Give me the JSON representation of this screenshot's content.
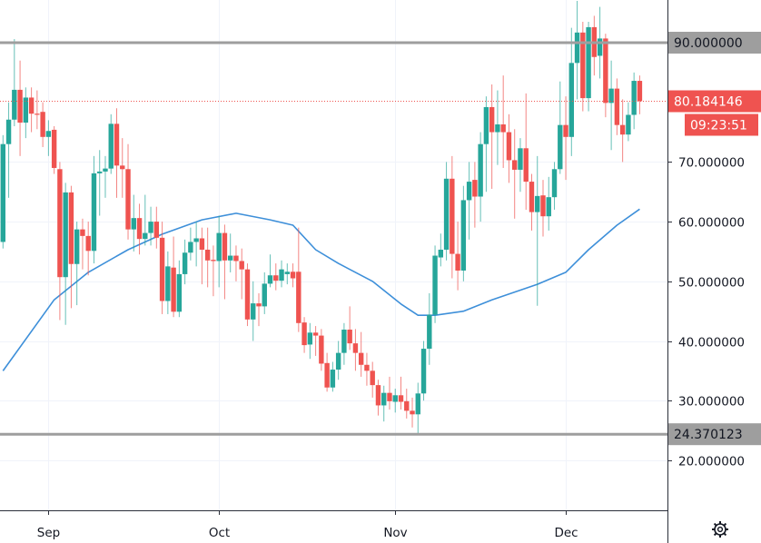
{
  "chart_data": {
    "type": "candlestick",
    "title": "",
    "xlabel": "",
    "ylabel": "",
    "ylim": [
      10,
      98
    ],
    "grid": true,
    "x_tick_labels": [
      {
        "label": "Sep",
        "date": "09-01"
      },
      {
        "label": "Oct",
        "date": "10-01"
      },
      {
        "label": "Nov",
        "date": "11-01"
      },
      {
        "label": "Dec",
        "date": "12-01"
      }
    ],
    "y_tick_labels": [
      {
        "label": "20.000000",
        "value": 20
      },
      {
        "label": "30.000000",
        "value": 30
      },
      {
        "label": "40.000000",
        "value": 40
      },
      {
        "label": "50.000000",
        "value": 50
      },
      {
        "label": "60.000000",
        "value": 60
      },
      {
        "label": "70.000000",
        "value": 70
      }
    ],
    "columns": [
      "date",
      "open",
      "high",
      "low",
      "close"
    ],
    "candles": [
      [
        "08-24",
        56.6,
        74.5,
        55.5,
        73.0
      ],
      [
        "08-25",
        73.0,
        80.0,
        64.0,
        77.1
      ],
      [
        "08-26",
        77.1,
        90.6,
        76.0,
        82.1
      ],
      [
        "08-27",
        82.1,
        87.0,
        71.0,
        76.6
      ],
      [
        "08-28",
        76.6,
        82.5,
        74.0,
        80.8
      ],
      [
        "08-29",
        80.8,
        82.5,
        75.0,
        78.1
      ],
      [
        "08-30",
        78.1,
        82.0,
        75.5,
        78.0
      ],
      [
        "08-31",
        78.4,
        80.0,
        72.5,
        74.2
      ],
      [
        "09-01",
        74.2,
        77.0,
        71.0,
        75.2
      ],
      [
        "09-02",
        75.4,
        76.0,
        68.0,
        69.0
      ],
      [
        "09-03",
        68.8,
        70.0,
        43.5,
        50.7
      ],
      [
        "09-04",
        50.7,
        66.5,
        42.7,
        64.9
      ],
      [
        "09-05",
        64.9,
        66.0,
        45.5,
        52.9
      ],
      [
        "09-06",
        52.9,
        60.0,
        46.0,
        58.7
      ],
      [
        "09-07",
        58.7,
        60.5,
        52.0,
        57.6
      ],
      [
        "09-08",
        57.6,
        60.0,
        51.0,
        55.1
      ],
      [
        "09-09",
        55.1,
        71.0,
        53.0,
        68.1
      ],
      [
        "09-10",
        68.1,
        72.0,
        61.0,
        68.4
      ],
      [
        "09-11",
        68.4,
        71.0,
        64.0,
        68.9
      ],
      [
        "09-12",
        68.9,
        78.0,
        68.0,
        76.4
      ],
      [
        "09-13",
        76.4,
        79.0,
        64.0,
        69.4
      ],
      [
        "09-14",
        69.4,
        74.0,
        64.0,
        68.8
      ],
      [
        "09-15",
        68.8,
        73.0,
        57.0,
        58.7
      ],
      [
        "09-16",
        58.7,
        64.5,
        55.0,
        60.6
      ],
      [
        "09-17",
        60.6,
        63.0,
        54.5,
        57.1
      ],
      [
        "09-18",
        57.1,
        64.5,
        56.0,
        58.1
      ],
      [
        "09-19",
        58.1,
        62.5,
        56.0,
        60.0
      ],
      [
        "09-20",
        60.0,
        62.5,
        55.5,
        57.3
      ],
      [
        "09-21",
        57.3,
        60.0,
        44.5,
        46.7
      ],
      [
        "09-22",
        46.7,
        55.0,
        44.5,
        52.5
      ],
      [
        "09-23",
        52.3,
        57.5,
        44.0,
        44.9
      ],
      [
        "09-24",
        44.9,
        53.5,
        44.0,
        51.2
      ],
      [
        "09-25",
        51.2,
        57.0,
        49.5,
        54.8
      ],
      [
        "09-26",
        54.8,
        59.0,
        53.5,
        56.6
      ],
      [
        "09-27",
        56.6,
        60.0,
        52.5,
        57.2
      ],
      [
        "09-28",
        57.2,
        59.0,
        49.5,
        55.3
      ],
      [
        "09-29",
        55.3,
        59.0,
        49.0,
        53.5
      ],
      [
        "09-30",
        53.6,
        56.0,
        47.5,
        53.4
      ],
      [
        "10-01",
        53.4,
        61.0,
        49.0,
        58.1
      ],
      [
        "10-02",
        58.1,
        59.5,
        47.0,
        53.5
      ],
      [
        "10-03",
        53.5,
        58.0,
        51.5,
        54.3
      ],
      [
        "10-04",
        54.3,
        56.0,
        50.0,
        53.4
      ],
      [
        "10-05",
        53.4,
        55.5,
        47.0,
        52.0
      ],
      [
        "10-06",
        52.0,
        53.0,
        42.5,
        43.6
      ],
      [
        "10-07",
        43.6,
        50.0,
        40.0,
        46.3
      ],
      [
        "10-08",
        46.3,
        48.0,
        42.5,
        45.8
      ],
      [
        "10-09",
        45.8,
        51.5,
        44.5,
        49.6
      ],
      [
        "10-10",
        49.6,
        54.5,
        49.0,
        51.0
      ],
      [
        "10-11",
        51.0,
        53.0,
        48.5,
        50.1
      ],
      [
        "10-12",
        50.1,
        53.5,
        49.0,
        52.0
      ],
      [
        "10-13",
        51.2,
        53.0,
        49.5,
        51.6
      ],
      [
        "10-14",
        51.6,
        53.0,
        49.0,
        50.5
      ],
      [
        "10-15",
        51.6,
        59.0,
        41.5,
        43.0
      ],
      [
        "10-16",
        43.1,
        44.0,
        38.0,
        39.3
      ],
      [
        "10-17",
        39.4,
        43.0,
        37.0,
        41.4
      ],
      [
        "10-18",
        41.4,
        42.5,
        37.5,
        40.9
      ],
      [
        "10-19",
        40.9,
        42.0,
        35.0,
        36.2
      ],
      [
        "10-20",
        36.3,
        38.0,
        31.5,
        32.2
      ],
      [
        "10-21",
        32.2,
        36.5,
        31.5,
        35.2
      ],
      [
        "10-22",
        35.2,
        40.0,
        33.5,
        38.0
      ],
      [
        "10-23",
        38.0,
        43.0,
        36.0,
        41.9
      ],
      [
        "10-24",
        41.9,
        45.8,
        38.5,
        39.6
      ],
      [
        "10-25",
        39.6,
        42.0,
        35.0,
        38.0
      ],
      [
        "10-26",
        38.0,
        41.5,
        34.0,
        36.0
      ],
      [
        "10-27",
        36.0,
        38.0,
        32.5,
        35.0
      ],
      [
        "10-28",
        35.0,
        36.5,
        30.5,
        32.6
      ],
      [
        "10-29",
        32.6,
        33.5,
        27.5,
        29.2
      ],
      [
        "10-30",
        29.2,
        32.5,
        26.5,
        31.3
      ],
      [
        "10-31",
        31.3,
        34.0,
        28.5,
        29.9
      ],
      [
        "11-01",
        29.8,
        32.0,
        28.0,
        30.9
      ],
      [
        "11-02",
        30.9,
        34.0,
        28.5,
        29.8
      ],
      [
        "11-03",
        29.9,
        32.0,
        27.0,
        28.3
      ],
      [
        "11-04",
        28.3,
        30.5,
        25.5,
        27.7
      ],
      [
        "11-05",
        27.7,
        33.0,
        24.4,
        31.2
      ],
      [
        "11-06",
        31.2,
        40.0,
        30.0,
        38.7
      ],
      [
        "11-07",
        38.7,
        48.0,
        36.0,
        44.4
      ],
      [
        "11-08",
        44.4,
        56.0,
        43.0,
        54.3
      ],
      [
        "11-09",
        54.0,
        58.0,
        52.5,
        55.3
      ],
      [
        "11-10",
        55.3,
        70.0,
        53.5,
        67.2
      ],
      [
        "11-11",
        67.2,
        71.0,
        50.5,
        54.6
      ],
      [
        "11-12",
        54.6,
        60.0,
        48.5,
        51.8
      ],
      [
        "11-13",
        51.8,
        66.0,
        50.0,
        63.6
      ],
      [
        "11-14",
        63.6,
        70.0,
        57.0,
        66.7
      ],
      [
        "11-15",
        67.0,
        70.0,
        59.0,
        64.2
      ],
      [
        "11-16",
        64.2,
        75.0,
        60.0,
        73.0
      ],
      [
        "11-17",
        73.0,
        81.0,
        65.0,
        79.2
      ],
      [
        "11-18",
        79.2,
        83.0,
        65.5,
        75.0
      ],
      [
        "11-19",
        75.0,
        82.0,
        69.5,
        76.3
      ],
      [
        "11-20",
        76.3,
        84.5,
        69.0,
        75.0
      ],
      [
        "11-21",
        75.0,
        78.0,
        66.5,
        70.3
      ],
      [
        "11-22",
        70.3,
        75.5,
        60.5,
        68.7
      ],
      [
        "11-23",
        68.7,
        74.0,
        65.0,
        72.3
      ],
      [
        "11-24",
        72.3,
        81.5,
        62.0,
        66.7
      ],
      [
        "11-25",
        66.7,
        68.0,
        58.5,
        61.6
      ],
      [
        "11-26",
        61.6,
        71.0,
        45.9,
        64.3
      ],
      [
        "11-27",
        64.4,
        67.0,
        57.5,
        60.9
      ],
      [
        "11-28",
        60.9,
        67.5,
        58.5,
        64.1
      ],
      [
        "11-29",
        64.1,
        70.0,
        62.0,
        68.8
      ],
      [
        "11-30",
        68.8,
        83.5,
        68.0,
        76.2
      ],
      [
        "12-01",
        76.2,
        81.0,
        67.0,
        74.2
      ],
      [
        "12-02",
        74.2,
        92.5,
        71.0,
        86.6
      ],
      [
        "12-03",
        86.6,
        97.0,
        80.5,
        91.7
      ],
      [
        "12-04",
        91.7,
        93.5,
        78.5,
        80.7
      ],
      [
        "12-05",
        80.7,
        93.5,
        78.5,
        92.6
      ],
      [
        "12-06",
        92.6,
        94.5,
        84.5,
        87.6
      ],
      [
        "12-07",
        87.8,
        96.0,
        84.0,
        90.7
      ],
      [
        "12-08",
        90.7,
        91.5,
        77.5,
        79.9
      ],
      [
        "12-09",
        79.9,
        87.0,
        72.0,
        82.3
      ],
      [
        "12-10",
        82.3,
        84.0,
        74.5,
        76.2
      ],
      [
        "12-11",
        76.2,
        80.5,
        70.0,
        74.6
      ],
      [
        "12-12",
        74.6,
        80.0,
        73.5,
        77.9
      ],
      [
        "12-13",
        77.9,
        85.0,
        75.5,
        83.6
      ],
      [
        "12-14",
        83.6,
        84.5,
        78.0,
        80.2
      ]
    ],
    "moving_average": [
      [
        "08-24",
        35.0
      ],
      [
        "09-02",
        46.9
      ],
      [
        "09-08",
        51.5
      ],
      [
        "09-15",
        55.3
      ],
      [
        "09-21",
        57.9
      ],
      [
        "09-28",
        60.3
      ],
      [
        "10-04",
        61.4
      ],
      [
        "10-10",
        60.3
      ],
      [
        "10-14",
        59.4
      ],
      [
        "10-18",
        55.3
      ],
      [
        "10-22",
        53.0
      ],
      [
        "10-28",
        50.0
      ],
      [
        "11-02",
        46.2
      ],
      [
        "11-05",
        44.3
      ],
      [
        "11-08",
        44.3
      ],
      [
        "11-13",
        45.0
      ],
      [
        "11-18",
        46.9
      ],
      [
        "11-26",
        49.5
      ],
      [
        "12-01",
        51.5
      ],
      [
        "12-05",
        55.3
      ],
      [
        "12-10",
        59.4
      ],
      [
        "12-14",
        62.1
      ]
    ],
    "horizontal_lines": [
      {
        "label": "90.000000",
        "value": 90
      },
      {
        "label": "24.370123",
        "value": 24.370123
      }
    ],
    "last_price": {
      "label": "80.184146",
      "value": 80.184146,
      "countdown": "09:23:51"
    }
  },
  "colors": {
    "up": "#26a69a",
    "down": "#ef5350",
    "moving_average": "#3d8fd9",
    "horizontal_line": "#9e9e9e",
    "last_price": "#ef5350",
    "grid": "#f0f3fa",
    "axis_line": "#2a2e39"
  },
  "icons": {
    "settings": "gear-icon"
  }
}
